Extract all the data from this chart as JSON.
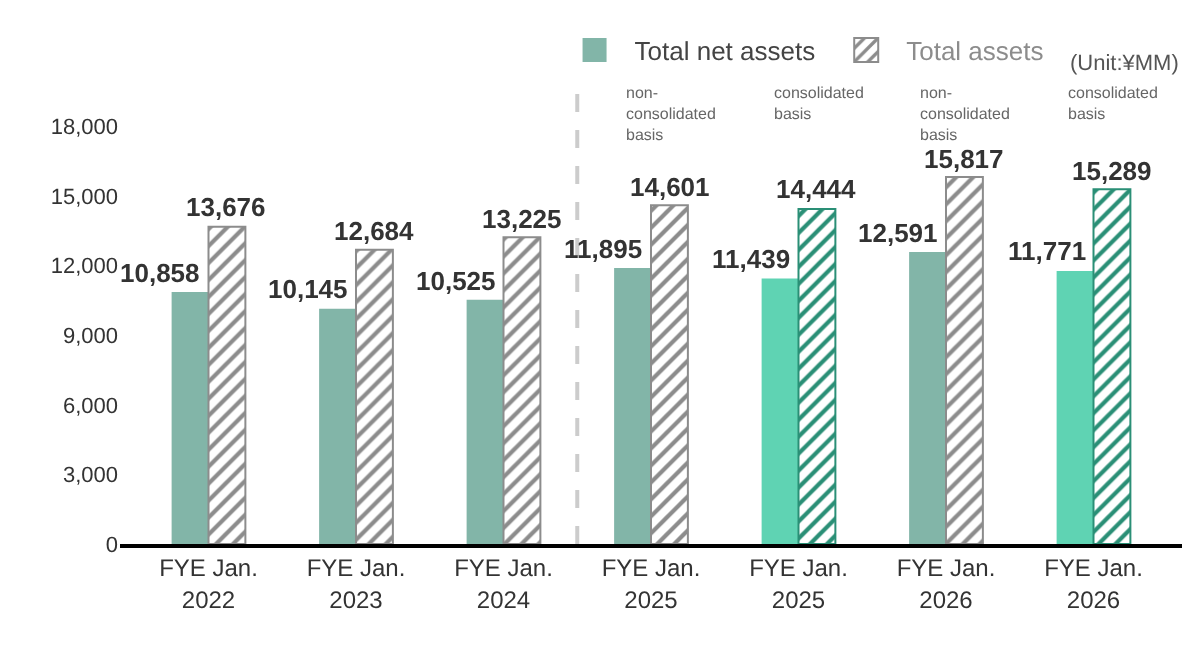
{
  "chart_data": {
    "type": "bar",
    "categories": [
      "FYE Jan.\n2022",
      "FYE Jan.\n2023",
      "FYE Jan.\n2024",
      "FYE Jan.\n2025",
      "FYE Jan.\n2025",
      "FYE Jan.\n2026",
      "FYE Jan.\n2026"
    ],
    "series": [
      {
        "name": "Total net assets",
        "colors": [
          "#82b5a8",
          "#82b5a8",
          "#82b5a8",
          "#82b5a8",
          "#5fd3b3",
          "#82b5a8",
          "#5fd3b3"
        ],
        "values": [
          10858,
          10145,
          10525,
          11895,
          11439,
          12591,
          11771
        ]
      },
      {
        "name": "Total assets",
        "colors": [
          "#8c8c8c",
          "#8c8c8c",
          "#8c8c8c",
          "#8c8c8c",
          "#2a8f76",
          "#8c8c8c",
          "#2a8f76"
        ],
        "values": [
          13676,
          12684,
          13225,
          14601,
          14444,
          15817,
          15289
        ]
      }
    ],
    "ylim": [
      0,
      20000
    ],
    "yticks": [
      {
        "value": 0,
        "label": "0"
      },
      {
        "value": 3000,
        "label": "3,000"
      },
      {
        "value": 6000,
        "label": "6,000"
      },
      {
        "value": 9000,
        "label": "9,000"
      },
      {
        "value": 12000,
        "label": "12,000"
      },
      {
        "value": 15000,
        "label": "15,000"
      },
      {
        "value": 18000,
        "label": "18,000"
      }
    ],
    "value_labels": [
      [
        "10,858",
        "10,145",
        "10,525",
        "11,895",
        "11,439",
        "12,591",
        "11,771"
      ],
      [
        "13,676",
        "12,684",
        "13,225",
        "14,601",
        "14,444",
        "15,817",
        "15,289"
      ]
    ],
    "annotations": [
      "non-\nconsolidated\nbasis",
      "consolidated\nbasis",
      "non-\nconsolidated\nbasis",
      "consolidated\nbasis",
      "(Unit:¥MM)"
    ],
    "legend": "top right"
  }
}
